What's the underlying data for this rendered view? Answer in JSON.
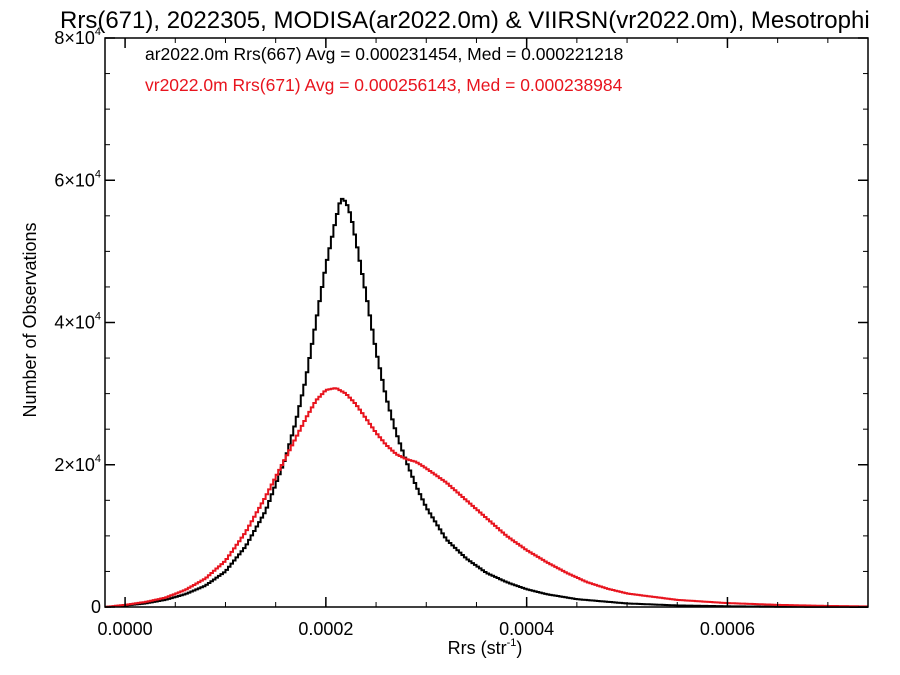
{
  "chart_data": {
    "type": "line",
    "style": "histogram-step",
    "title": "Rrs(671), 2022305, MODISA(ar2022.0m) & VIIRSN(vr2022.0m), Mesotrophi",
    "xlabel": "Rrs (str",
    "xlabel_sup": "-1",
    "xlabel_suffix": ")",
    "ylabel": "Number of Observations",
    "xlim": [
      -2e-05,
      0.00074
    ],
    "ylim": [
      0,
      80000
    ],
    "x_ticks": [
      0.0,
      0.0002,
      0.0004,
      0.0006
    ],
    "x_tick_labels": [
      "0.0000",
      "0.0002",
      "0.0004",
      "0.0006"
    ],
    "y_ticks": [
      0,
      20000,
      40000,
      60000,
      80000
    ],
    "y_tick_labels": [
      {
        "base": "0",
        "exp": ""
      },
      {
        "base": "2×10",
        "exp": "4"
      },
      {
        "base": "4×10",
        "exp": "4"
      },
      {
        "base": "6×10",
        "exp": "4"
      },
      {
        "base": "8×10",
        "exp": "4"
      }
    ],
    "grid": false,
    "legend_position": "top-left",
    "series": [
      {
        "name": "ar2022.0m Rrs(667) Avg = 0.000231454, Med = 0.000221218",
        "color": "#000000",
        "points": [
          [
            -2e-05,
            0
          ],
          [
            0.0,
            200
          ],
          [
            2e-05,
            500
          ],
          [
            4e-05,
            1000
          ],
          [
            6e-05,
            1800
          ],
          [
            8e-05,
            3000
          ],
          [
            0.0001,
            5000
          ],
          [
            0.00012,
            8500
          ],
          [
            0.00014,
            13500
          ],
          [
            0.00016,
            21000
          ],
          [
            0.00017,
            26000
          ],
          [
            0.00018,
            32000
          ],
          [
            0.00019,
            40000
          ],
          [
            0.0002,
            48000
          ],
          [
            0.00021,
            54500
          ],
          [
            0.000215,
            57500
          ],
          [
            0.00022,
            57000
          ],
          [
            0.000225,
            55000
          ],
          [
            0.00023,
            51500
          ],
          [
            0.00024,
            44000
          ],
          [
            0.00025,
            36000
          ],
          [
            0.00026,
            29500
          ],
          [
            0.00027,
            24500
          ],
          [
            0.00028,
            20500
          ],
          [
            0.00029,
            17000
          ],
          [
            0.0003,
            14000
          ],
          [
            0.00032,
            9500
          ],
          [
            0.00034,
            6800
          ],
          [
            0.00036,
            4800
          ],
          [
            0.00038,
            3500
          ],
          [
            0.0004,
            2500
          ],
          [
            0.00042,
            1800
          ],
          [
            0.00045,
            1100
          ],
          [
            0.0005,
            500
          ],
          [
            0.00055,
            220
          ],
          [
            0.0006,
            100
          ],
          [
            0.00065,
            40
          ],
          [
            0.0007,
            15
          ],
          [
            0.00074,
            5
          ]
        ]
      },
      {
        "name": "vr2022.0m Rrs(671) Avg = 0.000256143, Med = 0.000238984",
        "color": "#e8141e",
        "points": [
          [
            -2e-05,
            0
          ],
          [
            0.0,
            300
          ],
          [
            2e-05,
            700
          ],
          [
            4e-05,
            1300
          ],
          [
            6e-05,
            2400
          ],
          [
            8e-05,
            4000
          ],
          [
            0.0001,
            6500
          ],
          [
            0.00012,
            10500
          ],
          [
            0.00014,
            15500
          ],
          [
            0.00016,
            21000
          ],
          [
            0.00018,
            26500
          ],
          [
            0.00019,
            29000
          ],
          [
            0.0002,
            30500
          ],
          [
            0.00021,
            30800
          ],
          [
            0.00022,
            30000
          ],
          [
            0.00023,
            28500
          ],
          [
            0.00024,
            26500
          ],
          [
            0.00025,
            24500
          ],
          [
            0.00026,
            22800
          ],
          [
            0.00027,
            21500
          ],
          [
            0.00028,
            20800
          ],
          [
            0.00029,
            20400
          ],
          [
            0.0003,
            19500
          ],
          [
            0.00032,
            17500
          ],
          [
            0.00034,
            15000
          ],
          [
            0.00036,
            12500
          ],
          [
            0.00038,
            10000
          ],
          [
            0.0004,
            8000
          ],
          [
            0.00042,
            6300
          ],
          [
            0.00044,
            4800
          ],
          [
            0.00046,
            3500
          ],
          [
            0.00048,
            2600
          ],
          [
            0.0005,
            1900
          ],
          [
            0.00055,
            1000
          ],
          [
            0.0006,
            550
          ],
          [
            0.00065,
            300
          ],
          [
            0.0007,
            150
          ],
          [
            0.00074,
            80
          ]
        ]
      }
    ]
  }
}
